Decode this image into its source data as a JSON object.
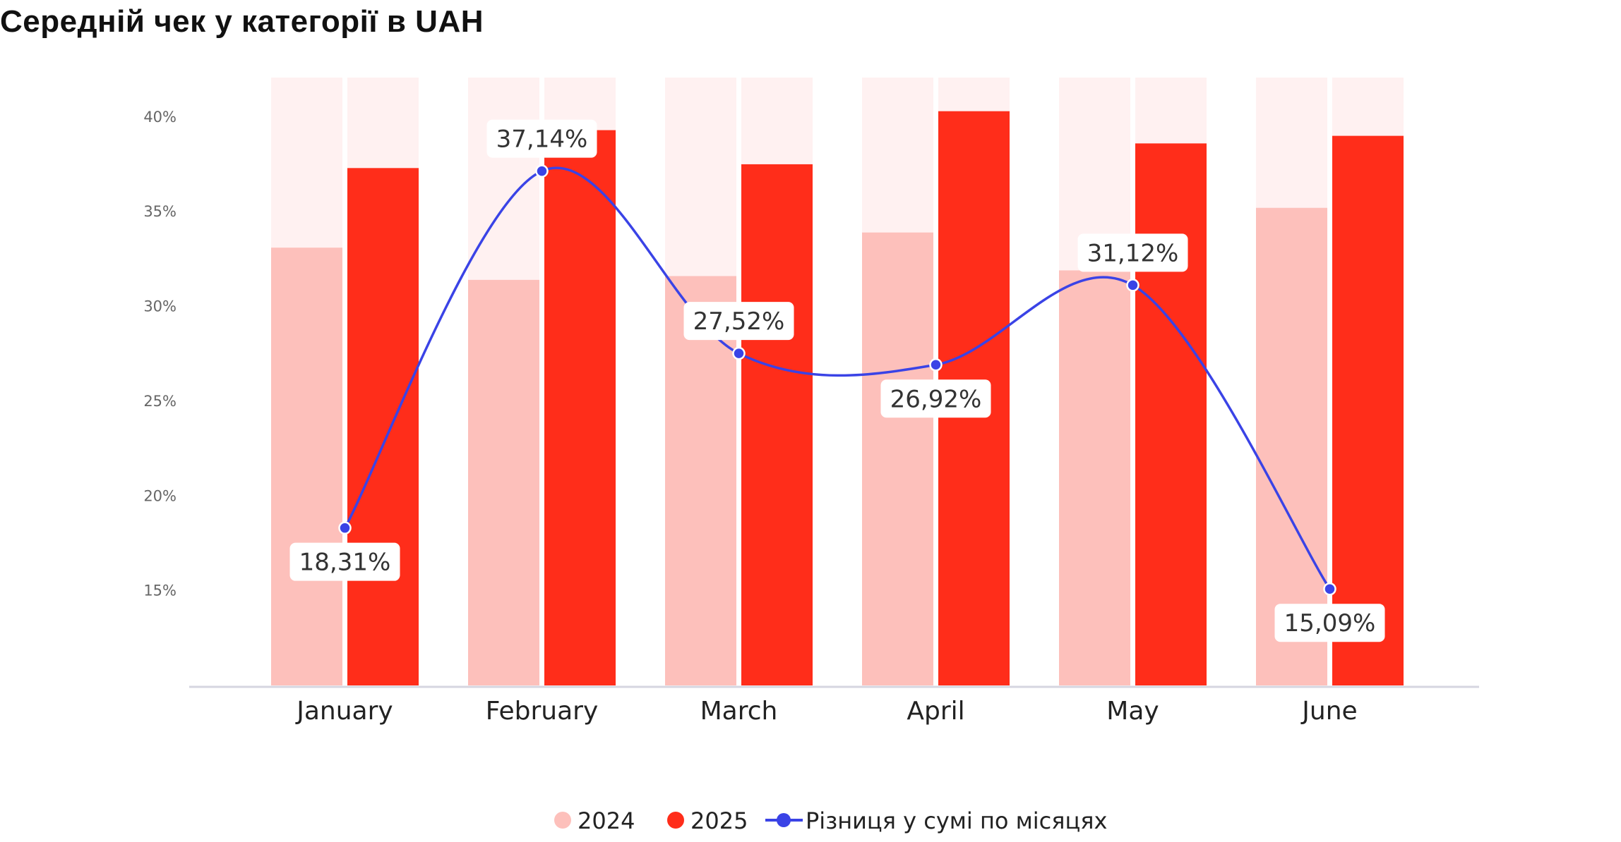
{
  "colors": {
    "bar_2024": "#fdc0bb",
    "bar_2025": "#ff2d1a",
    "bar_bg": "#fff1f1",
    "line": "#3a43e6",
    "axis": "#d6d6e0"
  },
  "chart_data": {
    "type": "bar",
    "title": "Середній чек у категорії в UAH",
    "categories": [
      "January",
      "February",
      "March",
      "April",
      "May",
      "June"
    ],
    "ylim": [
      10,
      42
    ],
    "yticks": [
      15,
      20,
      25,
      30,
      35,
      40
    ],
    "ytick_labels": [
      "15%",
      "20%",
      "25%",
      "30%",
      "35%",
      "40%"
    ],
    "grid": false,
    "legend_position": "bottom-center",
    "series": [
      {
        "name": "2024",
        "type": "bar",
        "values": [
          33.1,
          31.4,
          31.6,
          33.9,
          31.9,
          35.2
        ]
      },
      {
        "name": "2025",
        "type": "bar",
        "values": [
          37.3,
          39.3,
          37.5,
          40.3,
          38.6,
          39.0
        ]
      },
      {
        "name": "Різниця у сумі по місяцях",
        "type": "line",
        "values": [
          18.31,
          37.14,
          27.52,
          26.92,
          31.12,
          15.09
        ],
        "labels": [
          "18,31%",
          "37,14%",
          "27,52%",
          "26,92%",
          "31,12%",
          "15,09%"
        ]
      }
    ]
  }
}
